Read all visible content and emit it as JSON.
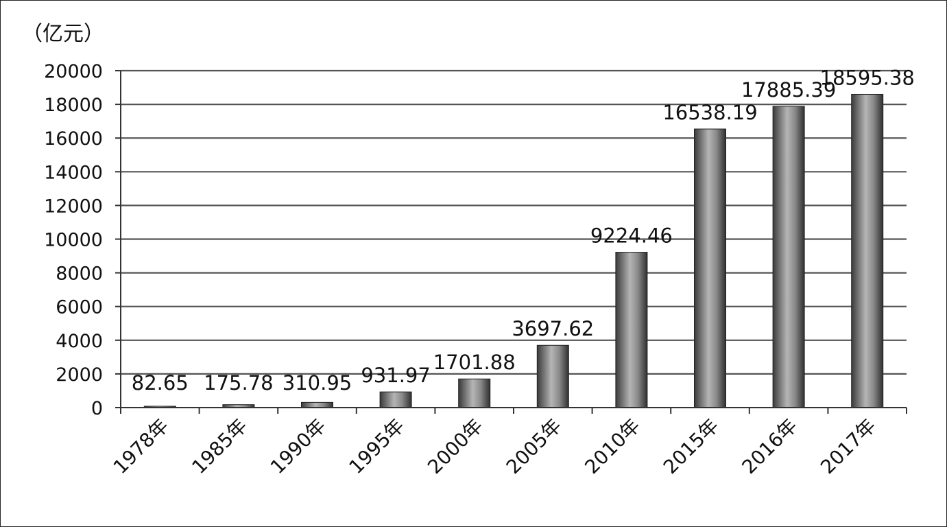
{
  "chart_data": {
    "type": "bar",
    "unit_label": "（亿元）",
    "categories": [
      "1978年",
      "1985年",
      "1990年",
      "1995年",
      "2000年",
      "2005年",
      "2010年",
      "2015年",
      "2016年",
      "2017年"
    ],
    "values": [
      82.65,
      175.78,
      310.95,
      931.97,
      1701.88,
      3697.62,
      9224.46,
      16538.19,
      17885.39,
      18595.38
    ],
    "data_labels": [
      "82.65",
      "175.78",
      "310.95",
      "931.97",
      "1701.88",
      "3697.62",
      "9224.46",
      "16538.19",
      "17885.39",
      "18595.38"
    ],
    "y_ticks": [
      "0",
      "2000",
      "4000",
      "6000",
      "8000",
      "10000",
      "12000",
      "14000",
      "16000",
      "18000",
      "20000"
    ],
    "ylim": [
      0,
      20000
    ],
    "grid": true,
    "legend": "none",
    "bar_color": "#6e6e6e"
  }
}
